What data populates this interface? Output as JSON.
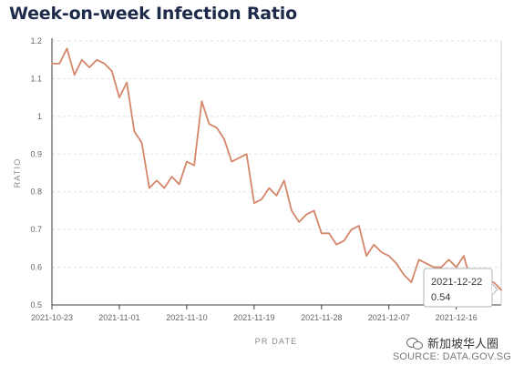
{
  "title": "Week-on-week Infection Ratio",
  "source_label": "SOURCE: DATA.GOV.SG",
  "watermark_text": "新加坡华人圈",
  "tooltip": {
    "date": "2021-12-22",
    "value": "0.54"
  },
  "colors": {
    "line": "#d4876a",
    "axis": "#3b3b3b",
    "grid": "#dde2e8",
    "tick_text": "#666666"
  },
  "chart_data": {
    "type": "line",
    "xlabel": "PR DATE",
    "ylabel": "RATIO",
    "ylim": [
      0.5,
      1.2
    ],
    "grid": true,
    "yticks": [
      "0.5",
      "0.6",
      "0.7",
      "0.8",
      "0.9",
      "1",
      "1.1",
      "1.2"
    ],
    "xticks": [
      "2021-10-23",
      "2021-11-01",
      "2021-11-10",
      "2021-11-19",
      "2021-11-28",
      "2021-12-07",
      "2021-12-16"
    ],
    "x": [
      "2021-10-23",
      "2021-10-24",
      "2021-10-25",
      "2021-10-26",
      "2021-10-27",
      "2021-10-28",
      "2021-10-29",
      "2021-10-30",
      "2021-10-31",
      "2021-11-01",
      "2021-11-02",
      "2021-11-03",
      "2021-11-04",
      "2021-11-05",
      "2021-11-06",
      "2021-11-07",
      "2021-11-08",
      "2021-11-09",
      "2021-11-10",
      "2021-11-11",
      "2021-11-12",
      "2021-11-13",
      "2021-11-14",
      "2021-11-15",
      "2021-11-16",
      "2021-11-17",
      "2021-11-18",
      "2021-11-19",
      "2021-11-20",
      "2021-11-21",
      "2021-11-22",
      "2021-11-23",
      "2021-11-24",
      "2021-11-25",
      "2021-11-26",
      "2021-11-27",
      "2021-11-28",
      "2021-11-29",
      "2021-11-30",
      "2021-12-01",
      "2021-12-02",
      "2021-12-03",
      "2021-12-04",
      "2021-12-05",
      "2021-12-06",
      "2021-12-07",
      "2021-12-08",
      "2021-12-09",
      "2021-12-10",
      "2021-12-11",
      "2021-12-12",
      "2021-12-13",
      "2021-12-14",
      "2021-12-15",
      "2021-12-16",
      "2021-12-17",
      "2021-12-18",
      "2021-12-19",
      "2021-12-20",
      "2021-12-21",
      "2021-12-22"
    ],
    "series": [
      {
        "values": [
          1.14,
          1.14,
          1.18,
          1.11,
          1.15,
          1.13,
          1.15,
          1.14,
          1.12,
          1.05,
          1.09,
          0.96,
          0.93,
          0.81,
          0.83,
          0.81,
          0.84,
          0.82,
          0.88,
          0.87,
          1.04,
          0.98,
          0.97,
          0.94,
          0.88,
          0.89,
          0.9,
          0.77,
          0.78,
          0.81,
          0.79,
          0.83,
          0.75,
          0.72,
          0.74,
          0.75,
          0.69,
          0.69,
          0.66,
          0.67,
          0.7,
          0.71,
          0.63,
          0.66,
          0.64,
          0.63,
          0.61,
          0.58,
          0.56,
          0.62,
          0.61,
          0.6,
          0.6,
          0.62,
          0.6,
          0.63,
          0.56,
          0.56,
          0.56,
          0.56,
          0.54
        ]
      }
    ]
  }
}
